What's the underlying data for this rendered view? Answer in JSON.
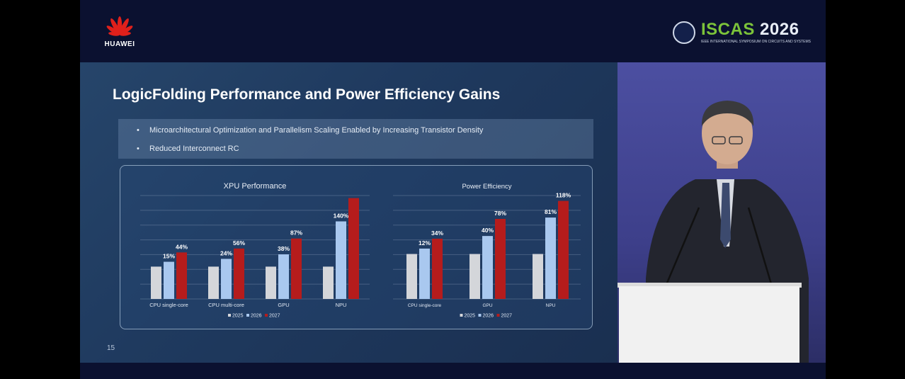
{
  "header": {
    "logo_text": "HUAWEI",
    "event_logo": {
      "name_prefix": "ISCAS",
      "name_year": "2026",
      "subtitle": "IEEE INTERNATIONAL SYMPOSIUM ON CIRCUITS AND SYSTEMS"
    }
  },
  "slide": {
    "title": "LogicFolding Performance and Power Efficiency Gains",
    "bullets": [
      "Microarchitectural Optimization and Parallelism Scaling Enabled by Increasing Transistor Density",
      "Reduced Interconnect RC"
    ],
    "page_number": "15"
  },
  "colors": {
    "y2025": "#d4d6da",
    "y2026": "#a9c8ef",
    "y2027": "#b51c1c"
  },
  "chart_data": [
    {
      "type": "bar",
      "title": "XPU Performance",
      "categories": [
        "CPU single-core",
        "CPU multi-core",
        "GPU",
        "NPU"
      ],
      "series": [
        {
          "name": "2025",
          "values": [
            1.0,
            1.0,
            1.0,
            1.0
          ]
        },
        {
          "name": "2026",
          "values": [
            1.15,
            1.24,
            1.38,
            2.4
          ]
        },
        {
          "name": "2027",
          "values": [
            1.44,
            1.56,
            1.87,
            3.12
          ]
        }
      ],
      "labels": {
        "2026": [
          "15%",
          "24%",
          "38%",
          "140%"
        ],
        "2027": [
          "44%",
          "56%",
          "87%",
          ""
        ]
      },
      "ylim": [
        0,
        3.2
      ],
      "grid": true,
      "legend": "bottom"
    },
    {
      "type": "bar",
      "title": "Power Efficiency",
      "categories": [
        "CPU single-core",
        "GPU",
        "NPU"
      ],
      "series": [
        {
          "name": "2025",
          "values": [
            1.0,
            1.0,
            1.0
          ]
        },
        {
          "name": "2026",
          "values": [
            1.12,
            1.4,
            1.81
          ]
        },
        {
          "name": "2027",
          "values": [
            1.34,
            1.78,
            2.18
          ]
        }
      ],
      "labels": {
        "2026": [
          "12%",
          "40%",
          "81%"
        ],
        "2027": [
          "34%",
          "78%",
          "118%"
        ]
      },
      "ylim": [
        0,
        2.3
      ],
      "grid": true,
      "legend": "bottom"
    }
  ]
}
